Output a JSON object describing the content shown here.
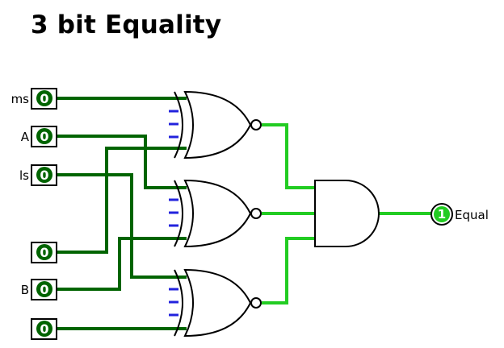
{
  "title": "3 bit Equality",
  "inputs": {
    "ms": {
      "label": "ms",
      "value": "0"
    },
    "a": {
      "label": "A",
      "value": "0"
    },
    "ls": {
      "label": "ls",
      "value": "0"
    },
    "b2": {
      "label": "",
      "value": "0"
    },
    "b": {
      "label": "B",
      "value": "0"
    },
    "b0": {
      "label": "",
      "value": "0"
    }
  },
  "output": {
    "label": "Equal",
    "value": "1"
  },
  "colors": {
    "wire_low": "#006400",
    "wire_high": "#22cc22",
    "pin_fill": "#006400",
    "pin_border": "#000000",
    "negated_input_tick": "#2222dd",
    "gate_stroke": "#000000"
  },
  "gates": {
    "xnor_count": 3,
    "and_inputs": 3
  }
}
